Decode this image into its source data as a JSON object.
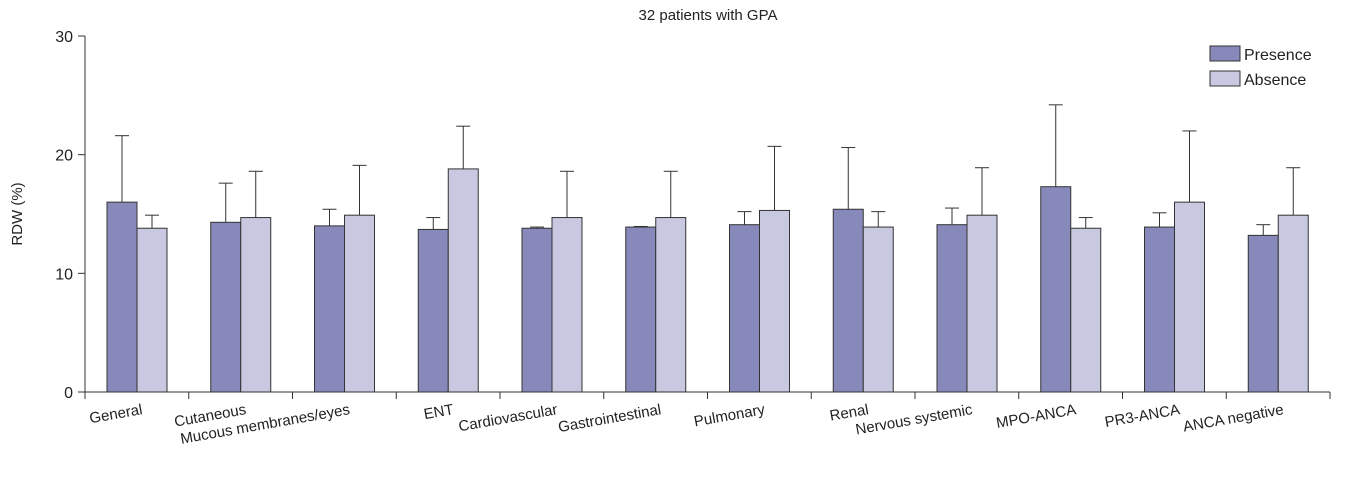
{
  "chart_data": {
    "type": "bar",
    "title": "32 patients with GPA",
    "xlabel": "",
    "ylabel": "RDW (%)",
    "ylim": [
      0,
      30
    ],
    "yticks": [
      0,
      10,
      20,
      30
    ],
    "grid": false,
    "legend_position": "top-right",
    "categories": [
      "General",
      "Cutaneous",
      "Mucous membranes/eyes",
      "ENT",
      "Cardiovascular",
      "Gastrointestinal",
      "Pulmonary",
      "Renal",
      "Nervous systemic",
      "MPO-ANCA",
      "PR3-ANCA",
      "ANCA negative"
    ],
    "series": [
      {
        "name": "Presence",
        "color": "#8889bb",
        "values": [
          16.0,
          14.3,
          14.0,
          13.7,
          13.8,
          13.9,
          14.1,
          15.4,
          14.1,
          17.3,
          13.9,
          13.2
        ],
        "error": [
          5.6,
          3.3,
          1.4,
          1.0,
          0.1,
          0.05,
          1.1,
          5.2,
          1.4,
          6.9,
          1.2,
          0.9
        ]
      },
      {
        "name": "Absence",
        "color": "#c8c8e0",
        "values": [
          13.8,
          14.7,
          14.9,
          18.8,
          14.7,
          14.7,
          15.3,
          13.9,
          14.9,
          13.8,
          16.0,
          14.9
        ],
        "error": [
          1.1,
          3.9,
          4.2,
          3.6,
          3.9,
          3.9,
          5.4,
          1.3,
          4.0,
          0.9,
          6.0,
          4.0
        ]
      }
    ]
  }
}
